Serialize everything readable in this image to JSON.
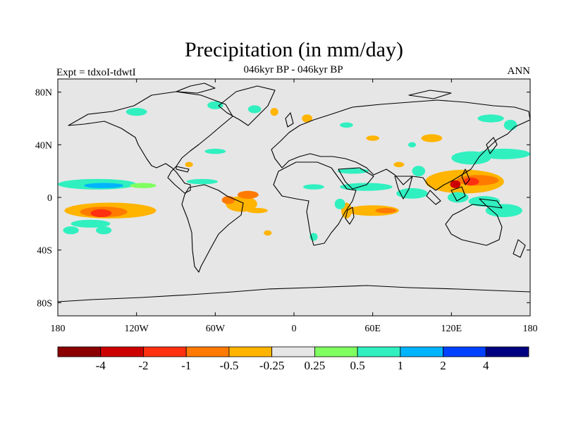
{
  "title": "Precipitation (in mm/day)",
  "left_string": "Expt = tdxoI-tdwtI",
  "center_string": "046kyr BP - 046kyr BP",
  "right_string": "ANN",
  "lat_ticks": [
    "80N",
    "40N",
    "0",
    "40S",
    "80S"
  ],
  "lat_values": [
    80,
    40,
    0,
    -40,
    -80
  ],
  "lon_ticks": [
    "180",
    "120W",
    "60W",
    "0",
    "60E",
    "120E",
    "180"
  ],
  "lon_values": [
    -180,
    -120,
    -60,
    0,
    60,
    120,
    180
  ],
  "map_extent": {
    "lon": [
      -180,
      180
    ],
    "lat": [
      -90,
      90
    ]
  },
  "colorbar": {
    "colors": [
      "#8b0000",
      "#cd0000",
      "#ff3010",
      "#ff7a00",
      "#ffb400",
      "#e6e6e6",
      "#80ff60",
      "#30f0c0",
      "#00b4ff",
      "#0040ff",
      "#000080"
    ],
    "labels": [
      "-4",
      "-2",
      "-1",
      "-0.5",
      "-0.25",
      "0.25",
      "0.5",
      "1",
      "2",
      "4"
    ]
  },
  "colors": {
    "background": "#e6e6e6",
    "coast": "#000000"
  },
  "chart_data": {
    "type": "heatmap",
    "title": "Precipitation (in mm/day)",
    "subtitle": "046kyr BP - 046kyr BP",
    "annotations": [
      "Expt = tdxoI-tdwtI",
      "ANN"
    ],
    "xlim": [
      -180,
      180
    ],
    "ylim": [
      -90,
      90
    ],
    "levels": [
      -4,
      -2,
      -1,
      -0.5,
      -0.25,
      0.25,
      0.5,
      1,
      2,
      4
    ],
    "regions": [
      {
        "lon": -150,
        "lat": 10,
        "rlon": 30,
        "rlat": 4,
        "value": 0.7
      },
      {
        "lon": -145,
        "lat": 9,
        "rlon": 15,
        "rlat": 2,
        "value": 1.3
      },
      {
        "lon": -140,
        "lat": -10,
        "rlon": 35,
        "rlat": 6,
        "value": -0.4
      },
      {
        "lon": -145,
        "lat": -11,
        "rlon": 18,
        "rlat": 4,
        "value": -0.8
      },
      {
        "lon": -147,
        "lat": -12,
        "rlon": 8,
        "rlat": 3,
        "value": -1.5
      },
      {
        "lon": -155,
        "lat": -20,
        "rlon": 15,
        "rlat": 3,
        "value": 0.6
      },
      {
        "lon": -145,
        "lat": -25,
        "rlon": 6,
        "rlat": 3,
        "value": 0.7
      },
      {
        "lon": -115,
        "lat": 9,
        "rlon": 10,
        "rlat": 2,
        "value": 0.4
      },
      {
        "lon": -40,
        "lat": -5,
        "rlon": 12,
        "rlat": 6,
        "value": -0.4
      },
      {
        "lon": -50,
        "lat": -2,
        "rlon": 5,
        "rlat": 3,
        "value": -0.8
      },
      {
        "lon": -35,
        "lat": 2,
        "rlon": 8,
        "rlat": 3,
        "value": -0.6
      },
      {
        "lon": -28,
        "lat": -10,
        "rlon": 8,
        "rlat": 2,
        "value": -0.3
      },
      {
        "lon": -15,
        "lat": 65,
        "rlon": 3,
        "rlat": 3,
        "value": -0.4
      },
      {
        "lon": -20,
        "lat": -27,
        "rlon": 3,
        "rlat": 2,
        "value": -0.3
      },
      {
        "lon": -70,
        "lat": 12,
        "rlon": 12,
        "rlat": 2,
        "value": 0.5
      },
      {
        "lon": -60,
        "lat": 35,
        "rlon": 8,
        "rlat": 2,
        "value": 0.5
      },
      {
        "lon": -80,
        "lat": 25,
        "rlon": 3,
        "rlat": 2,
        "value": -0.3
      },
      {
        "lon": 15,
        "lat": 8,
        "rlon": 8,
        "rlat": 2,
        "value": 0.5
      },
      {
        "lon": 55,
        "lat": 8,
        "rlon": 20,
        "rlat": 3,
        "value": 0.5
      },
      {
        "lon": 45,
        "lat": 20,
        "rlon": 12,
        "rlat": 2,
        "value": 0.6
      },
      {
        "lon": 60,
        "lat": -10,
        "rlon": 20,
        "rlat": 4,
        "value": -0.4
      },
      {
        "lon": 70,
        "lat": -10,
        "rlon": 8,
        "rlat": 2,
        "value": -0.8
      },
      {
        "lon": 40,
        "lat": -10,
        "rlon": 4,
        "rlat": 6,
        "value": -0.3
      },
      {
        "lon": 35,
        "lat": -5,
        "rlon": 4,
        "rlat": 4,
        "value": 0.5
      },
      {
        "lon": 90,
        "lat": 3,
        "rlon": 12,
        "rlat": 4,
        "value": 0.6
      },
      {
        "lon": 108,
        "lat": 12,
        "rlon": 8,
        "rlat": 4,
        "value": -0.3
      },
      {
        "lon": 130,
        "lat": 12,
        "rlon": 30,
        "rlat": 9,
        "value": -0.4
      },
      {
        "lon": 140,
        "lat": 13,
        "rlon": 16,
        "rlat": 4,
        "value": -0.8
      },
      {
        "lon": 135,
        "lat": 12,
        "rlon": 6,
        "rlat": 3,
        "value": -1.2
      },
      {
        "lon": 123,
        "lat": 10,
        "rlon": 4,
        "rlat": 3,
        "value": -2.5
      },
      {
        "lon": 125,
        "lat": 0,
        "rlon": 8,
        "rlat": 4,
        "value": 0.7
      },
      {
        "lon": 145,
        "lat": -3,
        "rlon": 12,
        "rlat": 4,
        "value": 0.7
      },
      {
        "lon": 160,
        "lat": -10,
        "rlon": 14,
        "rlat": 5,
        "value": 0.6
      },
      {
        "lon": 135,
        "lat": 30,
        "rlon": 15,
        "rlat": 5,
        "value": 0.6
      },
      {
        "lon": 160,
        "lat": 33,
        "rlon": 20,
        "rlat": 4,
        "value": 0.7
      },
      {
        "lon": 95,
        "lat": 20,
        "rlon": 5,
        "rlat": 4,
        "value": 0.5
      },
      {
        "lon": 80,
        "lat": 25,
        "rlon": 4,
        "rlat": 2,
        "value": -0.3
      },
      {
        "lon": 90,
        "lat": 40,
        "rlon": 3,
        "rlat": 2,
        "value": 0.5
      },
      {
        "lon": 150,
        "lat": 60,
        "rlon": 10,
        "rlat": 3,
        "value": 0.5
      },
      {
        "lon": 165,
        "lat": 55,
        "rlon": 5,
        "rlat": 4,
        "value": 0.5
      },
      {
        "lon": 105,
        "lat": 45,
        "rlon": 8,
        "rlat": 3,
        "value": -0.3
      },
      {
        "lon": 60,
        "lat": 45,
        "rlon": 5,
        "rlat": 2,
        "value": -0.3
      },
      {
        "lon": 10,
        "lat": 60,
        "rlon": 4,
        "rlat": 3,
        "value": -0.4
      },
      {
        "lon": 40,
        "lat": 55,
        "rlon": 5,
        "rlat": 2,
        "value": 0.5
      },
      {
        "lon": -30,
        "lat": 67,
        "rlon": 5,
        "rlat": 3,
        "value": 0.5
      },
      {
        "lon": -120,
        "lat": 65,
        "rlon": 8,
        "rlat": 3,
        "value": 0.5
      },
      {
        "lon": -60,
        "lat": 70,
        "rlon": 6,
        "rlat": 3,
        "value": 0.5
      },
      {
        "lon": -170,
        "lat": -25,
        "rlon": 6,
        "rlat": 3,
        "value": 0.5
      },
      {
        "lon": 15,
        "lat": -30,
        "rlon": 3,
        "rlat": 3,
        "value": 0.5
      }
    ]
  }
}
